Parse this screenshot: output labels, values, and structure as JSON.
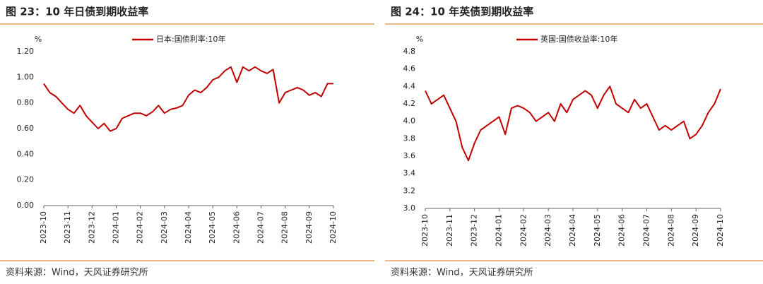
{
  "chart_data": [
    {
      "type": "line",
      "title": "图 23：10 年日债到期收益率",
      "y_unit": "%",
      "note": "资料来源：Wind，天风证券研究所",
      "categories": [
        "2023-10",
        null,
        null,
        null,
        "2023-11",
        null,
        null,
        null,
        "2023-12",
        null,
        null,
        null,
        "2024-01",
        null,
        null,
        null,
        "2024-02",
        null,
        null,
        null,
        "2024-03",
        null,
        null,
        null,
        "2024-04",
        null,
        null,
        null,
        "2024-05",
        null,
        null,
        null,
        "2024-06",
        null,
        null,
        null,
        "2024-07",
        null,
        null,
        null,
        "2024-08",
        null,
        null,
        null,
        "2024-09",
        null,
        null,
        null,
        "2024-10"
      ],
      "series": [
        {
          "name": "日本:国债利率:10年",
          "color": "#c00000",
          "values": [
            0.95,
            0.88,
            0.85,
            0.8,
            0.75,
            0.72,
            0.78,
            0.7,
            0.65,
            0.6,
            0.64,
            0.58,
            0.6,
            0.68,
            0.7,
            0.72,
            0.72,
            0.7,
            0.73,
            0.78,
            0.72,
            0.75,
            0.76,
            0.78,
            0.86,
            0.9,
            0.88,
            0.92,
            0.98,
            1.0,
            1.05,
            1.08,
            0.96,
            1.08,
            1.05,
            1.08,
            1.05,
            1.03,
            1.06,
            0.8,
            0.88,
            0.9,
            0.92,
            0.9,
            0.86,
            0.88,
            0.85,
            0.95,
            0.95
          ]
        }
      ],
      "ylim": [
        0,
        1.2
      ],
      "yticks": [
        {
          "value": 0,
          "label": "0.00"
        },
        {
          "value": 0.2,
          "label": "0.20"
        },
        {
          "value": 0.4,
          "label": "0.40"
        },
        {
          "value": 0.6,
          "label": "0.60"
        },
        {
          "value": 0.8,
          "label": "0.80"
        },
        {
          "value": 1.0,
          "label": "1.00"
        },
        {
          "value": 1.2,
          "label": "1.20"
        }
      ],
      "grid": false
    },
    {
      "type": "line",
      "title": "图 24：10 年英债到期收益率",
      "y_unit": "%",
      "note": "资料来源：Wind，天风证券研究所",
      "categories": [
        "2023-10",
        null,
        null,
        null,
        "2023-11",
        null,
        null,
        null,
        "2023-12",
        null,
        null,
        null,
        "2024-01",
        null,
        null,
        null,
        "2024-02",
        null,
        null,
        null,
        "2024-03",
        null,
        null,
        null,
        "2024-04",
        null,
        null,
        null,
        "2024-05",
        null,
        null,
        null,
        "2024-06",
        null,
        null,
        null,
        "2024-07",
        null,
        null,
        null,
        "2024-08",
        null,
        null,
        null,
        "2024-09",
        null,
        null,
        null,
        "2024-10"
      ],
      "series": [
        {
          "name": "英国:国债收益率:10年",
          "color": "#c00000",
          "values": [
            4.35,
            4.2,
            4.25,
            4.3,
            4.15,
            4.0,
            3.7,
            3.55,
            3.75,
            3.9,
            3.95,
            4.0,
            4.05,
            3.85,
            4.15,
            4.18,
            4.15,
            4.1,
            4.0,
            4.05,
            4.1,
            4.0,
            4.2,
            4.1,
            4.25,
            4.3,
            4.35,
            4.3,
            4.15,
            4.3,
            4.4,
            4.2,
            4.15,
            4.1,
            4.25,
            4.15,
            4.2,
            4.05,
            3.9,
            3.95,
            3.9,
            3.95,
            4.0,
            3.8,
            3.85,
            3.95,
            4.1,
            4.2,
            4.37
          ]
        }
      ],
      "ylim": [
        3.0,
        4.8
      ],
      "yticks": [
        {
          "value": 3.0,
          "label": "3.0"
        },
        {
          "value": 3.2,
          "label": "3.2"
        },
        {
          "value": 3.4,
          "label": "3.4"
        },
        {
          "value": 3.6,
          "label": "3.6"
        },
        {
          "value": 3.8,
          "label": "3.8"
        },
        {
          "value": 4.0,
          "label": "4.0"
        },
        {
          "value": 4.2,
          "label": "4.2"
        },
        {
          "value": 4.4,
          "label": "4.4"
        },
        {
          "value": 4.6,
          "label": "4.6"
        },
        {
          "value": 4.8,
          "label": "4.8"
        }
      ],
      "grid": false
    }
  ]
}
